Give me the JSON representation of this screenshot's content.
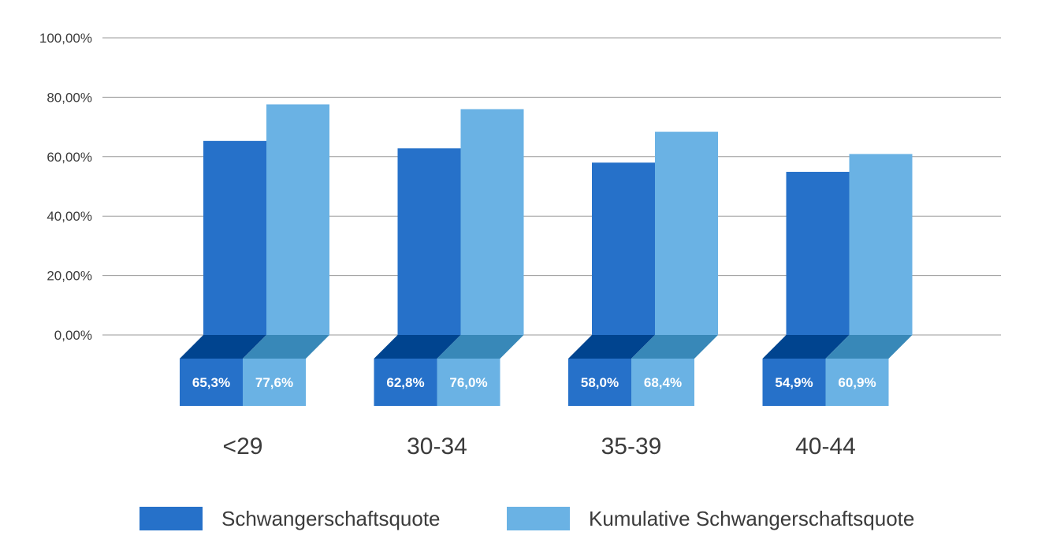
{
  "chart_data": {
    "type": "bar",
    "title": "",
    "xlabel": "",
    "ylabel": "",
    "categories": [
      "<29",
      "30-34",
      "35-39",
      "40-44"
    ],
    "series": [
      {
        "name": "Schwangerschaftsquote",
        "values": [
          65.3,
          62.8,
          58.0,
          54.9
        ],
        "labels": [
          "65,3%",
          "62,8%",
          "58,0%",
          "54,9%"
        ],
        "color": "#2671c9",
        "base_top_color": "#00448f"
      },
      {
        "name": "Kumulative Schwangerschaftsquote",
        "values": [
          77.6,
          76.0,
          68.4,
          60.9
        ],
        "labels": [
          "77,6%",
          "76,0%",
          "68,4%",
          "60,9%"
        ],
        "color": "#6ab2e4",
        "base_top_color": "#3888b8"
      }
    ],
    "ylim": [
      0,
      100
    ],
    "yticks": [
      {
        "value": 0,
        "label": "0,00%"
      },
      {
        "value": 20,
        "label": "20,00%"
      },
      {
        "value": 40,
        "label": "40,00%"
      },
      {
        "value": 60,
        "label": "60,00%"
      },
      {
        "value": 80,
        "label": "80,00%"
      },
      {
        "value": 100,
        "label": "100,00%"
      }
    ],
    "grid": true,
    "legend_position": "bottom-right",
    "colors": {
      "grid": "#9a9a9a",
      "text": "#3b3b3b",
      "label_text": "#ffffff"
    }
  }
}
